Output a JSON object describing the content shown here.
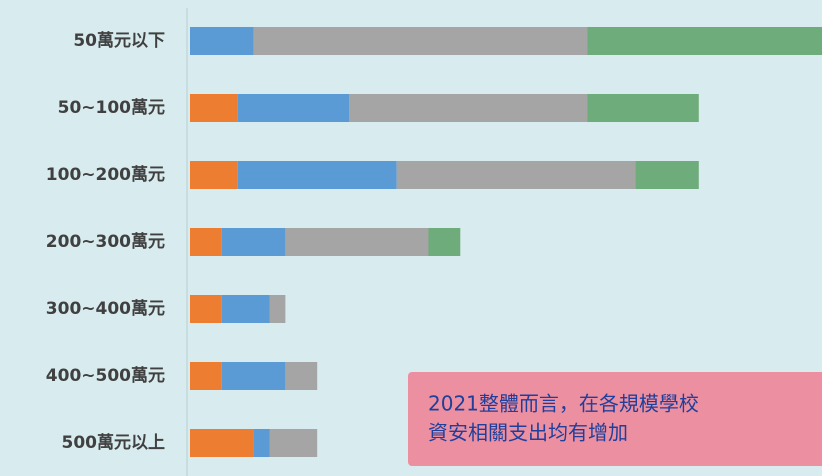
{
  "chart_data": {
    "type": "stacked-barh",
    "categories": [
      "50萬元以下",
      "50~100萬元",
      "100~200萬元",
      "200~300萬元",
      "300~400萬元",
      "400~500萬元",
      "500萬元以上"
    ],
    "series": [
      {
        "color": "#ed7d31",
        "values": [
          0,
          3,
          3,
          2,
          2,
          2,
          4
        ]
      },
      {
        "color": "#5b9bd5",
        "values": [
          4,
          7,
          10,
          4,
          3,
          4,
          1
        ]
      },
      {
        "color": "#a5a5a5",
        "values": [
          21,
          15,
          15,
          9,
          1,
          2,
          3
        ]
      },
      {
        "color": "#6fac7b",
        "values": [
          15,
          7,
          4,
          2,
          0,
          0,
          0
        ]
      }
    ],
    "xlim": [
      0,
      40
    ],
    "annotation": [
      "2021整體而言，在各規模學校",
      "資安相關支出均有增加"
    ]
  }
}
